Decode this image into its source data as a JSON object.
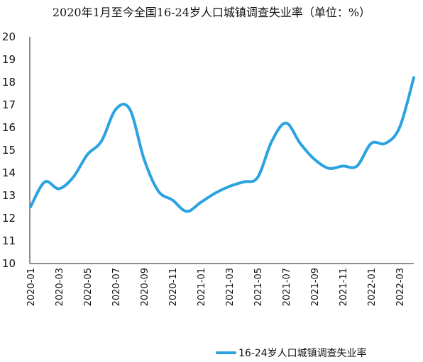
{
  "chart_data": {
    "type": "line",
    "title": "2020年1月至今全国16-24岁人口城镇调查失业率（单位：%）",
    "xlabel": "",
    "ylabel": "",
    "ylim": [
      10,
      20
    ],
    "yticks": [
      10,
      11,
      12,
      13,
      14,
      15,
      16,
      17,
      18,
      19,
      20
    ],
    "grid": false,
    "legend": "bottom",
    "color": "#2aa3e0",
    "xtick_labels": [
      "2020-01",
      "2020-03",
      "2020-05",
      "2020-07",
      "2020-09",
      "2020-11",
      "2021-01",
      "2021-03",
      "2021-05",
      "2021-07",
      "2021-09",
      "2021-11",
      "2022-01",
      "2022-03"
    ],
    "x": [
      "2020-01",
      "2020-02",
      "2020-03",
      "2020-04",
      "2020-05",
      "2020-06",
      "2020-07",
      "2020-08",
      "2020-09",
      "2020-10",
      "2020-11",
      "2020-12",
      "2021-01",
      "2021-02",
      "2021-03",
      "2021-04",
      "2021-05",
      "2021-06",
      "2021-07",
      "2021-08",
      "2021-09",
      "2021-10",
      "2021-11",
      "2021-12",
      "2022-01",
      "2022-02",
      "2022-03",
      "2022-04"
    ],
    "series": [
      {
        "name": "16-24岁人口城镇调查失业率",
        "values": [
          12.5,
          13.6,
          13.3,
          13.8,
          14.8,
          15.4,
          16.8,
          16.8,
          14.6,
          13.2,
          12.8,
          12.3,
          12.7,
          13.1,
          13.4,
          13.6,
          13.8,
          15.4,
          16.2,
          15.3,
          14.6,
          14.2,
          14.3,
          14.3,
          15.3,
          15.3,
          16.0,
          18.2
        ]
      }
    ]
  }
}
